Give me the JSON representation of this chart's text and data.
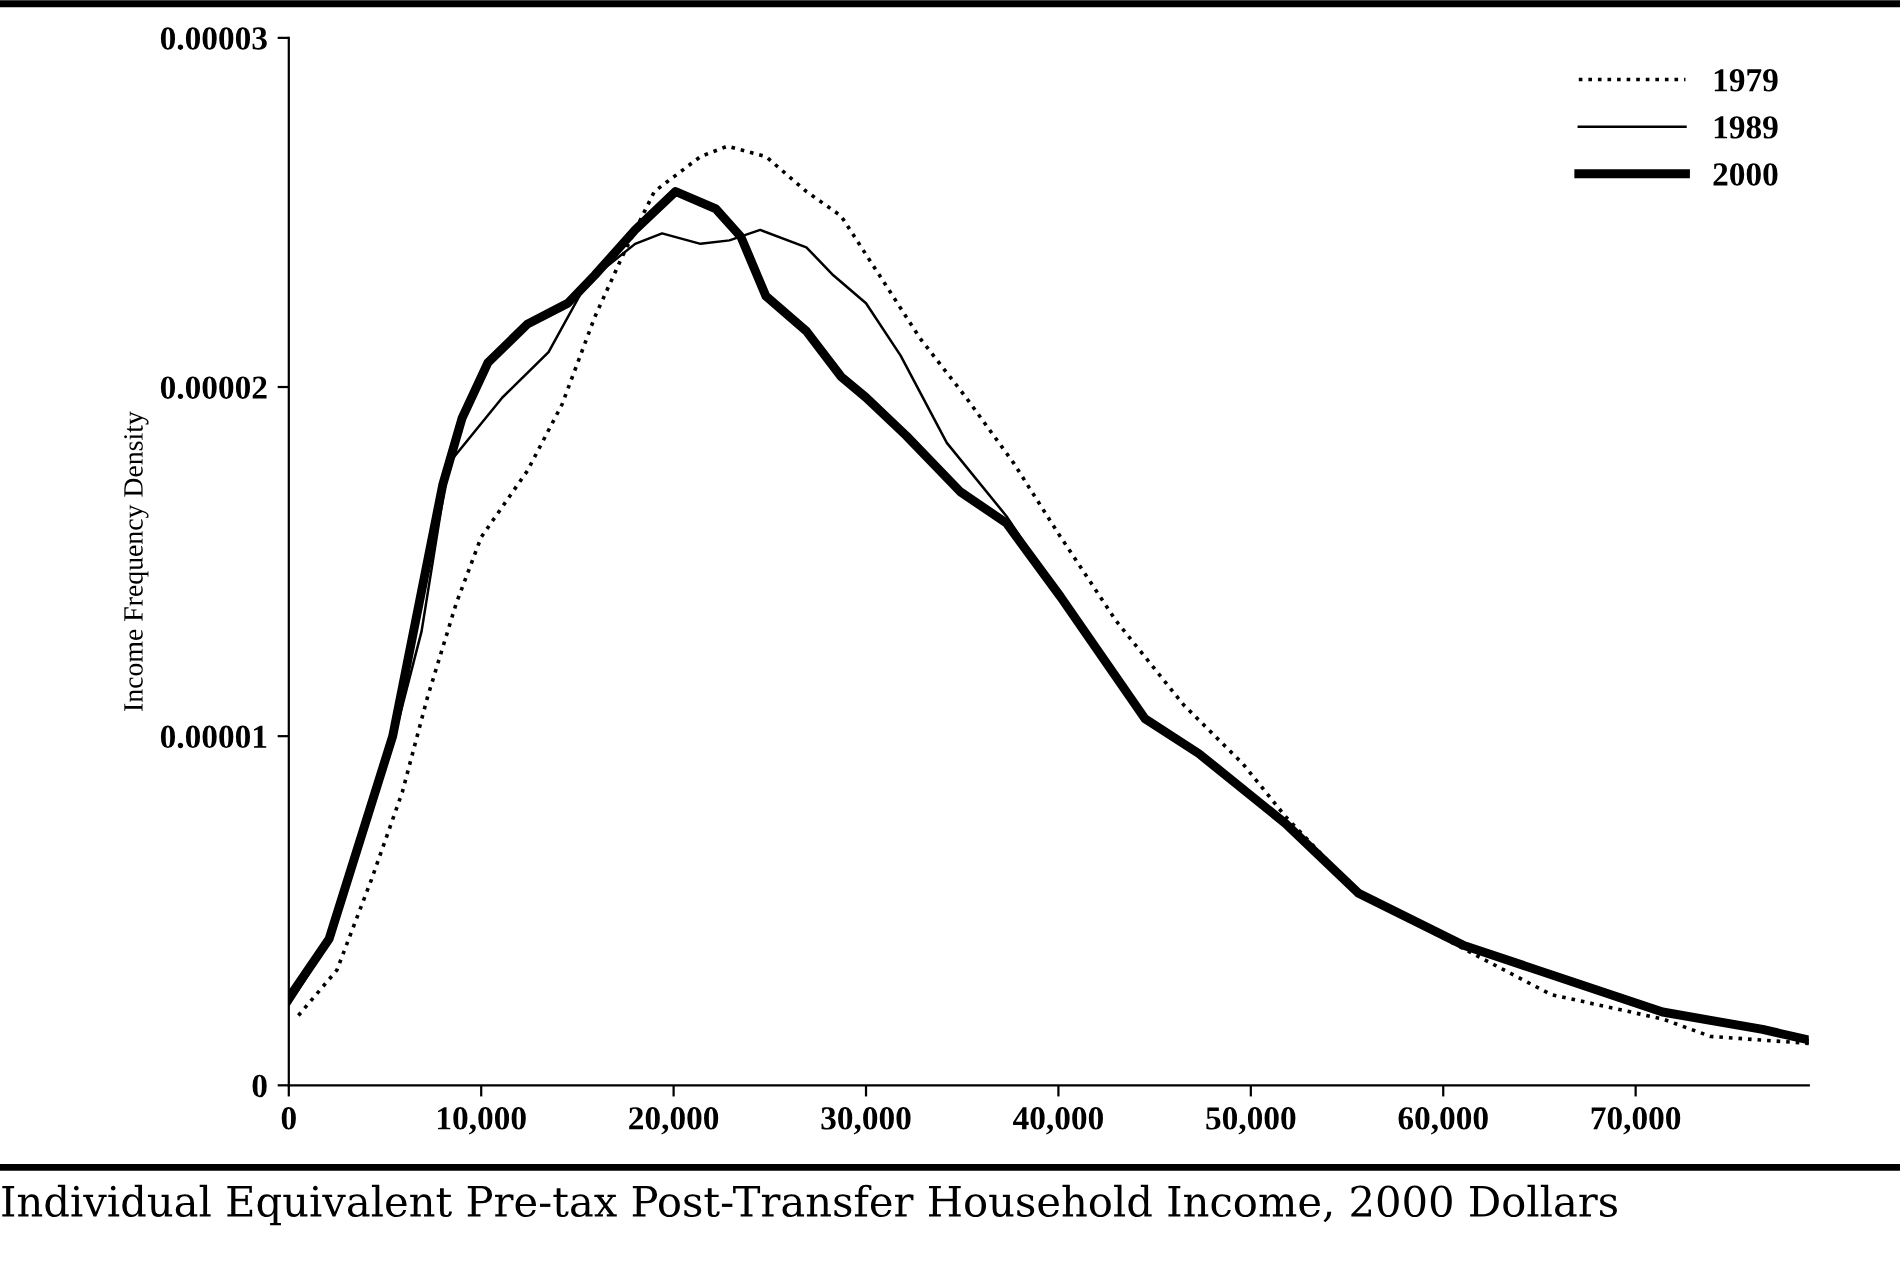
{
  "chart_data": {
    "type": "line",
    "xlabel": "Individual Equivalent Pre-tax Post-Transfer Household Income, 2000 Dollars",
    "ylabel": "Income Frequency Density",
    "xlim": [
      0,
      79000
    ],
    "ylim": [
      0,
      3e-05
    ],
    "xticks": [
      0,
      {
        "value": 10000,
        "label": "10,000"
      },
      {
        "value": 20000,
        "label": "20,000"
      },
      {
        "value": 30000,
        "label": "30,000"
      },
      {
        "value": 40000,
        "label": "40,000"
      },
      {
        "value": 50000,
        "label": "50,000"
      },
      {
        "value": 60000,
        "label": "60,000"
      },
      {
        "value": 70000,
        "label": "70,000"
      }
    ],
    "yticks": [
      0,
      {
        "value": 1e-05,
        "label": "0.00001"
      },
      {
        "value": 2e-05,
        "label": "0.00002"
      },
      {
        "value": 3e-05,
        "label": "0.00003"
      }
    ],
    "grid": false,
    "legend": "top right",
    "marker": "none",
    "series": [
      {
        "name": "1979",
        "color": "#000000",
        "line_style": "dotted",
        "x": [
          500,
          2500,
          4300,
          5900,
          7200,
          8700,
          10000,
          12400,
          14200,
          15900,
          17300,
          19000,
          21400,
          22800,
          24800,
          26900,
          28700,
          30700,
          32800,
          35200,
          37700,
          40000,
          43000,
          46500,
          49600,
          51800,
          55600,
          61100,
          65600,
          71400,
          73900,
          79000
        ],
        "values": [
          2e-06,
          3.3e-06,
          5.9e-06,
          8.4e-06,
          1.11e-05,
          1.38e-05,
          1.57e-05,
          1.76e-05,
          1.95e-05,
          2.2e-05,
          2.37e-05,
          2.56e-05,
          2.66e-05,
          2.69e-05,
          2.66e-05,
          2.56e-05,
          2.49e-05,
          2.32e-05,
          2.14e-05,
          1.97e-05,
          1.78e-05,
          1.58e-05,
          1.33e-05,
          1.09e-05,
          9.2e-06,
          7.7e-06,
          5.5e-06,
          3.9e-06,
          2.6e-06,
          1.9e-06,
          1.4e-06,
          1.2e-06
        ]
      },
      {
        "name": "1989",
        "color": "#000000",
        "line_style": "solid",
        "x": [
          0,
          2100,
          5400,
          6900,
          8300,
          11100,
          13500,
          15500,
          18000,
          19400,
          21400,
          22900,
          24500,
          26900,
          28300,
          30000,
          31800,
          34200,
          37300,
          40100,
          44500,
          47300,
          51800,
          55600,
          61100,
          64900,
          71400,
          76600,
          79000
        ],
        "values": [
          2.3e-06,
          4.1e-06,
          9.8e-06,
          1.3e-05,
          1.78e-05,
          1.97e-05,
          2.1e-05,
          2.3e-05,
          2.41e-05,
          2.44e-05,
          2.41e-05,
          2.42e-05,
          2.45e-05,
          2.4e-05,
          2.32e-05,
          2.24e-05,
          2.09e-05,
          1.84e-05,
          1.63e-05,
          1.4e-05,
          1.05e-05,
          9.5e-06,
          7.5e-06,
          5.5e-06,
          4e-06,
          3.3e-06,
          2.1e-06,
          1.6e-06,
          1.3e-06
        ]
      },
      {
        "name": "2000",
        "color": "#000000",
        "line_style": "solid",
        "x": [
          0,
          2100,
          5400,
          8000,
          9000,
          10350,
          12400,
          14500,
          15900,
          18000,
          20100,
          22200,
          23500,
          24800,
          26900,
          28700,
          30000,
          32100,
          34900,
          37300,
          40100,
          44500,
          47300,
          51800,
          55600,
          61100,
          64900,
          71400,
          76600,
          79000
        ],
        "values": [
          2.5e-06,
          4.2e-06,
          1e-05,
          1.72e-05,
          1.91e-05,
          2.07e-05,
          2.18e-05,
          2.24e-05,
          2.32e-05,
          2.45e-05,
          2.56e-05,
          2.51e-05,
          2.43e-05,
          2.26e-05,
          2.16e-05,
          2.03e-05,
          1.97e-05,
          1.86e-05,
          1.7e-05,
          1.61e-05,
          1.4e-05,
          1.05e-05,
          9.5e-06,
          7.5e-06,
          5.5e-06,
          4e-06,
          3.3e-06,
          2.1e-06,
          1.6e-06,
          1.3e-06
        ]
      }
    ]
  }
}
